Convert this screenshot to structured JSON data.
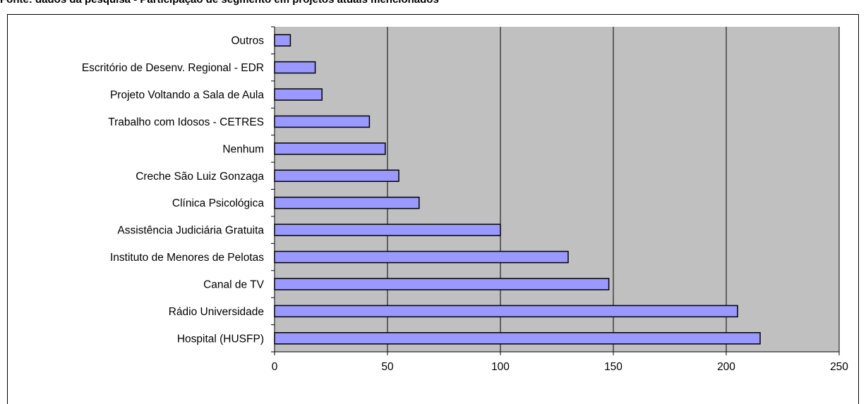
{
  "header": {
    "title": "Fonte: dados da pesquisa - Participação de segmento em projetos atuais mencionados"
  },
  "colors": {
    "plot_background": "#c0c0c0",
    "bar_fill": "#9999ff",
    "bar_stroke": "#000000",
    "gridline": "#000000"
  },
  "chart_data": {
    "type": "bar",
    "orientation": "horizontal",
    "categories": [
      "Hospital (HUSFP)",
      "Rádio Universidade",
      "Canal de TV",
      "Instituto de Menores de Pelotas ",
      "Assistência Judiciária Gratuita",
      "Clínica Psicológica",
      "Creche São Luiz Gonzaga",
      "Nenhum",
      "Trabalho com Idosos - CETRES",
      "Projeto Voltando a Sala de Aula",
      "Escritório de Desenv. Regional - EDR",
      "Outros"
    ],
    "values": [
      215,
      205,
      148,
      130,
      100,
      64,
      55,
      49,
      42,
      21,
      18,
      7
    ],
    "xlim": [
      0,
      250
    ],
    "xticks": [
      0,
      50,
      100,
      150,
      200,
      250
    ],
    "grid": "vertical",
    "legend": "none",
    "xlabel": "",
    "ylabel": ""
  }
}
